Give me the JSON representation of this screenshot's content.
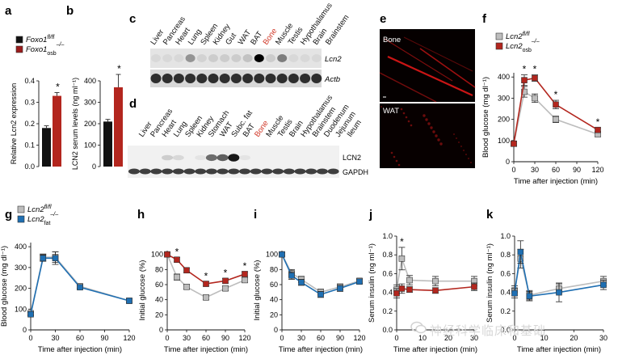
{
  "panels": {
    "a": {
      "letter": "a",
      "legend": [
        {
          "label": "Foxo1",
          "sup": "fl/fl",
          "sub": "",
          "color": "#111111"
        },
        {
          "label": "Foxo1",
          "sup": "–/–",
          "sub": "osb",
          "color": "#9b1c1c"
        }
      ],
      "ylabel": "Relative Lcn2 expression",
      "ticks": [
        "0.0",
        "0.1",
        "0.2",
        "0.3",
        "0.4"
      ],
      "star": "*"
    },
    "b": {
      "letter": "b",
      "ylabel": "LCN2 serum levels (ng ml⁻¹)",
      "ticks": [
        "0",
        "100",
        "200",
        "300",
        "400"
      ],
      "star": "*"
    },
    "c": {
      "letter": "c",
      "lanes": [
        "Liver",
        "Pancreas",
        "Heart",
        "Lung",
        "Spleen",
        "Kidney",
        "Gut",
        "WAT",
        "BAT",
        "Bone",
        "Muscle",
        "Testis",
        "Hypothalamus",
        "Brain",
        "Brainstem"
      ],
      "highlight": "Bone",
      "bands": [
        "Lcn2",
        "Actb"
      ]
    },
    "d": {
      "letter": "d",
      "lanes": [
        "Liver",
        "Pancreas",
        "Heart",
        "Lung",
        "Spleen",
        "Kidney",
        "Stomach",
        "WAT",
        "Subc. fat",
        "BAT",
        "Bone",
        "Muscle",
        "Testis",
        "Brain",
        "Hypothalamus",
        "Brainstem",
        "Duodenum",
        "Jejunum",
        "Ileum"
      ],
      "highlight": "Bone",
      "bands": [
        "LCN2",
        "GAPDH"
      ]
    },
    "e": {
      "letter": "e",
      "top_label": "Bone",
      "bottom_label": "WAT"
    },
    "f": {
      "letter": "f"
    },
    "g": {
      "letter": "g"
    },
    "h": {
      "letter": "h"
    },
    "i": {
      "letter": "i"
    },
    "j": {
      "letter": "j"
    },
    "k": {
      "letter": "k"
    }
  },
  "watermark": "神经科学临床和基础",
  "colors": {
    "red": "#b3261e",
    "black": "#111111",
    "blue": "#1f6fb2",
    "grey": "#bdbdbd"
  },
  "chart_data": [
    {
      "id": "a",
      "type": "bar",
      "categories": [
        "Foxo1 fl/fl",
        "Foxo1 osb –/–"
      ],
      "values": [
        0.18,
        0.33
      ],
      "errors": [
        0.01,
        0.015
      ],
      "ylabel": "Relative Lcn2 expression",
      "ylim": [
        0,
        0.4
      ]
    },
    {
      "id": "b",
      "type": "bar",
      "categories": [
        "Foxo1 fl/fl",
        "Foxo1 osb –/–"
      ],
      "values": [
        210,
        370
      ],
      "errors": [
        10,
        60
      ],
      "ylabel": "LCN2 serum levels (ng ml⁻¹)",
      "ylim": [
        0,
        400
      ]
    },
    {
      "id": "f",
      "type": "line",
      "x": [
        0,
        15,
        30,
        60,
        120
      ],
      "series": [
        {
          "name": "Lcn2 fl/fl",
          "values": [
            85,
            330,
            300,
            200,
            130
          ],
          "errors": [
            12,
            25,
            20,
            15,
            12
          ],
          "color": "#bdbdbd"
        },
        {
          "name": "Lcn2 osb –/–",
          "values": [
            85,
            385,
            395,
            270,
            150
          ],
          "errors": [
            12,
            25,
            15,
            20,
            10
          ],
          "color": "#b3261e"
        }
      ],
      "stars_at": [
        15,
        30,
        60,
        120
      ],
      "xlabel": "Time after injection (min)",
      "ylabel": "Blood glucose (mg dl⁻¹)",
      "xticks": [
        0,
        30,
        60,
        90,
        120
      ],
      "yticks": [
        0,
        100,
        200,
        300,
        400
      ],
      "xlim": [
        0,
        120
      ],
      "ylim": [
        0,
        420
      ]
    },
    {
      "id": "g",
      "type": "line",
      "x": [
        0,
        15,
        30,
        60,
        120
      ],
      "series": [
        {
          "name": "Lcn2 fl/fl",
          "values": [
            80,
            350,
            350,
            210,
            140
          ],
          "errors": [
            8,
            15,
            25,
            10,
            8
          ],
          "color": "#bdbdbd"
        },
        {
          "name": "Lcn2 fat –/–",
          "values": [
            75,
            345,
            345,
            205,
            140
          ],
          "errors": [
            8,
            15,
            30,
            10,
            8
          ],
          "color": "#1f6fb2"
        }
      ],
      "xlabel": "Time after injection (min)",
      "ylabel": "Blood glucose (mg dl⁻¹)",
      "xticks": [
        0,
        30,
        60,
        90,
        120
      ],
      "yticks": [
        0,
        100,
        200,
        300,
        400
      ],
      "xlim": [
        0,
        120
      ],
      "ylim": [
        0,
        420
      ]
    },
    {
      "id": "h",
      "type": "line",
      "x": [
        0,
        15,
        30,
        60,
        90,
        120
      ],
      "series": [
        {
          "name": "Lcn2 fl/fl",
          "values": [
            100,
            70,
            57,
            43,
            55,
            66
          ],
          "errors": [
            2,
            4,
            3,
            3,
            3,
            3
          ],
          "color": "#bdbdbd"
        },
        {
          "name": "Lcn2 osb –/–",
          "values": [
            100,
            93,
            79,
            61,
            65,
            74
          ],
          "errors": [
            2,
            3,
            3,
            3,
            3,
            3
          ],
          "color": "#b3261e"
        }
      ],
      "stars_at": [
        15,
        60,
        90,
        120
      ],
      "ylabel": "Initial glucose (%)",
      "xlabel": "Time after injection (min)",
      "xticks": [
        0,
        30,
        60,
        90,
        120
      ],
      "yticks": [
        0,
        20,
        40,
        60,
        80,
        100
      ],
      "xlim": [
        0,
        120
      ],
      "ylim": [
        0,
        105
      ]
    },
    {
      "id": "i",
      "type": "line",
      "x": [
        0,
        15,
        30,
        60,
        90,
        120
      ],
      "series": [
        {
          "name": "Lcn2 fl/fl",
          "values": [
            100,
            75,
            67,
            50,
            57,
            65
          ],
          "errors": [
            2,
            5,
            4,
            4,
            4,
            3
          ],
          "color": "#bdbdbd"
        },
        {
          "name": "Lcn2 fat –/–",
          "values": [
            100,
            72,
            63,
            47,
            55,
            64
          ],
          "errors": [
            2,
            5,
            4,
            4,
            4,
            3
          ],
          "color": "#1f6fb2"
        }
      ],
      "ylabel": "Initial glucose (%)",
      "xlabel": "Time after injection (min)",
      "xticks": [
        0,
        30,
        60,
        90,
        120
      ],
      "yticks": [
        0,
        20,
        40,
        60,
        80,
        100
      ],
      "xlim": [
        0,
        120
      ],
      "ylim": [
        0,
        105
      ]
    },
    {
      "id": "j",
      "type": "line",
      "x": [
        0,
        2,
        5,
        15,
        30
      ],
      "series": [
        {
          "name": "Lcn2 fl/fl",
          "values": [
            0.43,
            0.76,
            0.53,
            0.52,
            0.52
          ],
          "errors": [
            0.05,
            0.12,
            0.05,
            0.05,
            0.05
          ],
          "color": "#bdbdbd"
        },
        {
          "name": "Lcn2 osb –/–",
          "values": [
            0.39,
            0.44,
            0.43,
            0.42,
            0.46
          ],
          "errors": [
            0.05,
            0.05,
            0.03,
            0.03,
            0.04
          ],
          "color": "#b3261e"
        }
      ],
      "stars_at": [
        2
      ],
      "ylabel": "Serum insulin (ng ml⁻¹)",
      "xlabel": "Time after injection (min)",
      "xticks": [
        0,
        10,
        20,
        30
      ],
      "yticks": [
        0.0,
        0.2,
        0.4,
        0.6,
        0.8,
        1.0
      ],
      "xlim": [
        0,
        30
      ],
      "ylim": [
        0,
        1.0
      ]
    },
    {
      "id": "k",
      "type": "line",
      "x": [
        0,
        2,
        5,
        15,
        30
      ],
      "series": [
        {
          "name": "Lcn2 fl/fl",
          "values": [
            0.42,
            0.76,
            0.37,
            0.44,
            0.52
          ],
          "errors": [
            0.05,
            0.1,
            0.05,
            0.05,
            0.05
          ],
          "color": "#bdbdbd"
        },
        {
          "name": "Lcn2 fat –/–",
          "values": [
            0.39,
            0.83,
            0.36,
            0.4,
            0.48
          ],
          "errors": [
            0.05,
            0.12,
            0.05,
            0.1,
            0.05
          ],
          "color": "#1f6fb2"
        }
      ],
      "ylabel": "Serum insulin (ng ml⁻¹)",
      "xlabel": "Time after injection (min)",
      "xticks": [
        0,
        10,
        20,
        30
      ],
      "yticks": [
        0.0,
        0.2,
        0.4,
        0.6,
        0.8,
        1.0
      ],
      "xlim": [
        0,
        30
      ],
      "ylim": [
        0,
        1.0
      ]
    }
  ],
  "legends": {
    "f": [
      {
        "label": "Lcn2",
        "sup": "fl/fl",
        "sub": "",
        "color": "#bdbdbd"
      },
      {
        "label": "Lcn2",
        "sup": "–/–",
        "sub": "osb",
        "color": "#b3261e"
      }
    ],
    "g": [
      {
        "label": "Lcn2",
        "sup": "fl/fl",
        "sub": "",
        "color": "#bdbdbd"
      },
      {
        "label": "Lcn2",
        "sup": "–/–",
        "sub": "fat",
        "color": "#1f6fb2"
      }
    ]
  }
}
